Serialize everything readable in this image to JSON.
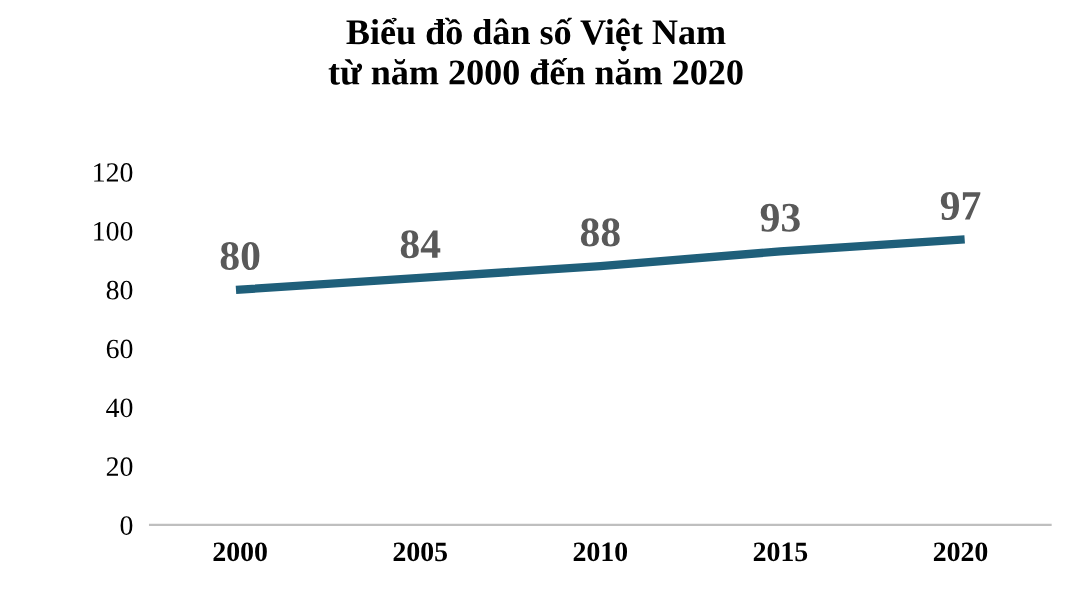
{
  "chart_data": {
    "type": "line",
    "title": "Biểu đồ dân số Việt Nam\ntừ năm 2000 đến năm 2020",
    "categories": [
      "2000",
      "2005",
      "2010",
      "2015",
      "2020"
    ],
    "series": [
      {
        "color": "#1f5f7a",
        "values": [
          80,
          84,
          88,
          93,
          97
        ]
      }
    ],
    "ylim": [
      0,
      120
    ],
    "yticks": [
      0,
      20,
      40,
      60,
      80,
      100,
      120
    ],
    "data_labels": true,
    "grid": false,
    "legend": false,
    "marker": "none",
    "line_style": "solid"
  }
}
